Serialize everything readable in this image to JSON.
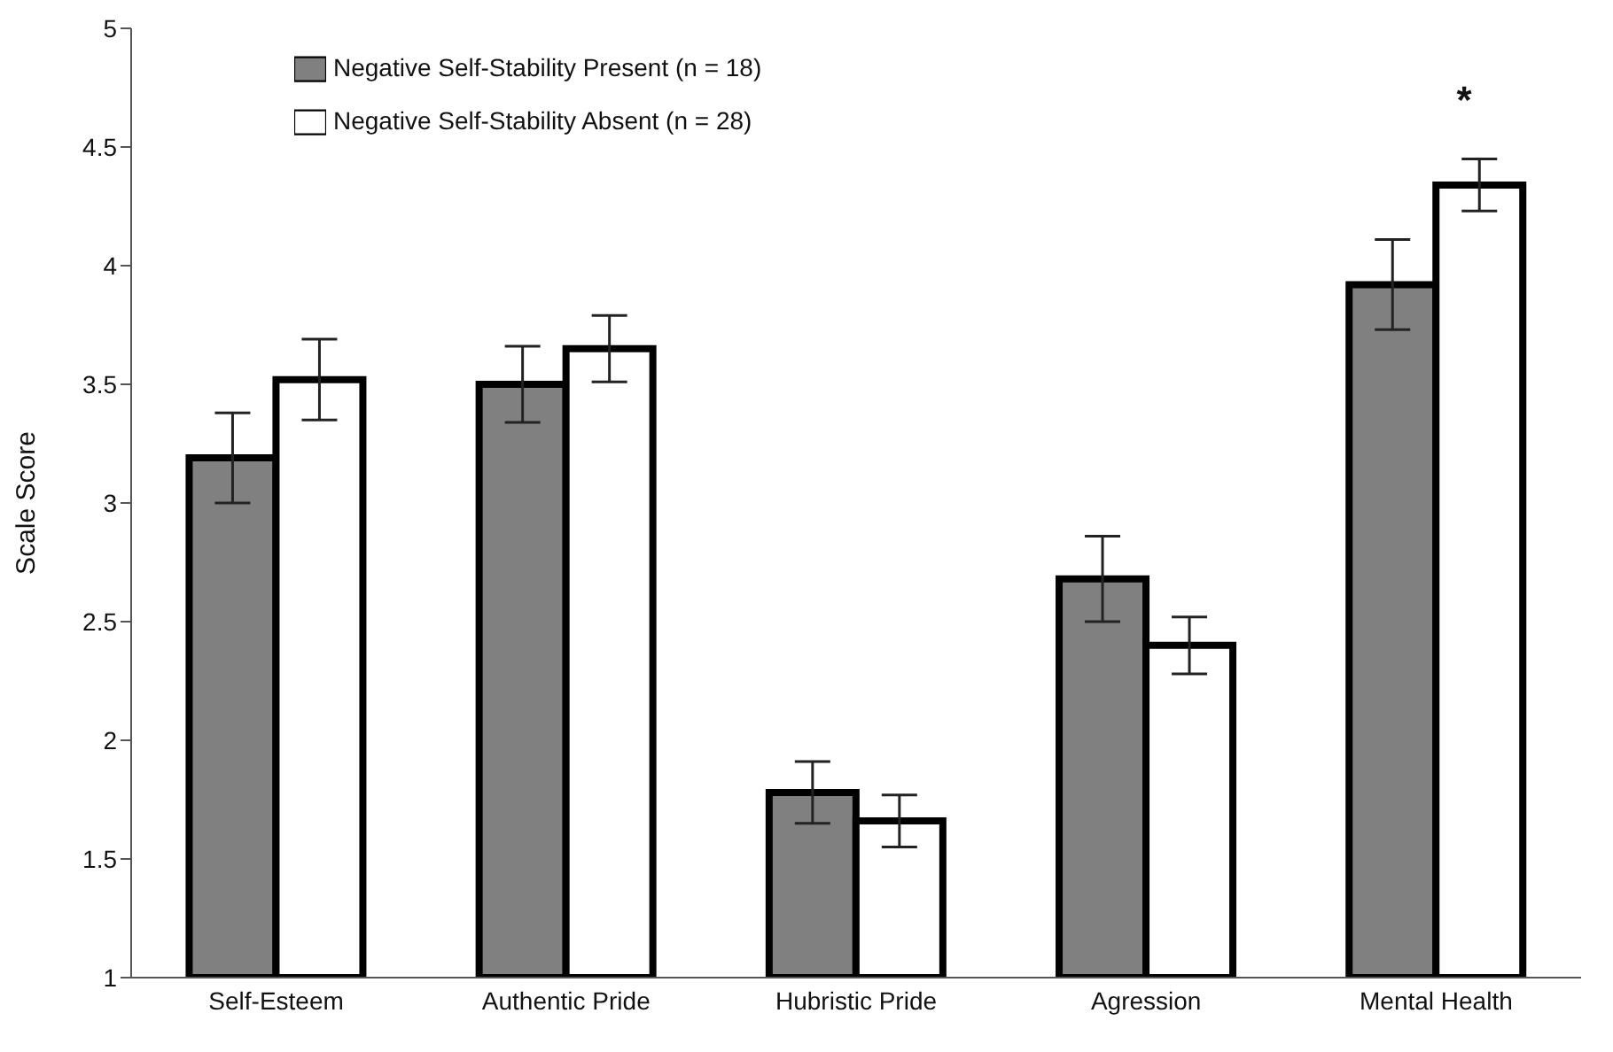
{
  "chart_data": {
    "type": "bar",
    "ylabel": "Scale Score",
    "categories": [
      "Self-Esteem",
      "Authentic Pride",
      "Hubristic Pride",
      "Agression",
      "Mental Health"
    ],
    "series": [
      {
        "name": "Negative Self-Stability Present (n = 18)",
        "color": "#808080",
        "values": [
          3.19,
          3.5,
          1.78,
          2.68,
          3.92
        ],
        "errors": [
          0.19,
          0.16,
          0.13,
          0.18,
          0.19
        ]
      },
      {
        "name": "Negative Self-Stability Absent (n = 28)",
        "color": "#ffffff",
        "values": [
          3.52,
          3.65,
          1.66,
          2.4,
          4.34
        ],
        "errors": [
          0.17,
          0.14,
          0.11,
          0.12,
          0.11
        ]
      }
    ],
    "ylim": [
      1,
      5
    ],
    "yticks": [
      1,
      1.5,
      2,
      2.5,
      3,
      3.5,
      4,
      4.5,
      5
    ],
    "grid": false,
    "legend": "top left",
    "annotations": [
      "*"
    ]
  }
}
